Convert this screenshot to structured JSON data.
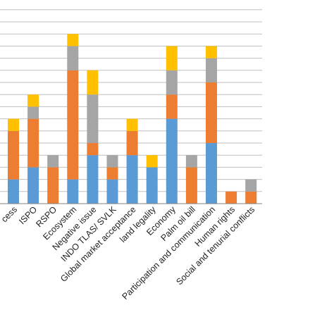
{
  "chart_data": {
    "type": "bar",
    "stacked": true,
    "categories": [
      "Access",
      "ISPO",
      "RSPO",
      "Ecosystem",
      "Negative issue",
      "INDO TLAS/ SVLK",
      "Global market acceptance",
      "land legality",
      "Economy",
      "Palm oil bill",
      "Participation and communication",
      "Human rights",
      "Social and tenurial conflicts"
    ],
    "visible_labels": [
      "cess",
      "ISPO",
      "RSPO",
      "Ecosystem",
      "Negative issue",
      "INDO TLAS/ SVLK",
      "Global market acceptance",
      "land legality",
      "Economy",
      "Palm oil bill",
      "Participation and communication",
      "Human rights",
      "Social and tenurial conflicts"
    ],
    "series": [
      {
        "color": "#5b9bd5",
        "values": [
          2,
          3,
          0,
          2,
          4,
          2,
          4,
          3,
          7,
          0,
          5,
          0,
          0
        ]
      },
      {
        "color": "#ed7d31",
        "values": [
          4,
          4,
          3,
          9,
          1,
          1,
          2,
          0,
          2,
          3,
          5,
          1,
          1
        ]
      },
      {
        "color": "#a5a5a5",
        "values": [
          0,
          1,
          1,
          2,
          4,
          1,
          0,
          0,
          2,
          1,
          2,
          0,
          1
        ]
      },
      {
        "color": "#ffc000",
        "values": [
          1,
          1,
          0,
          1,
          2,
          0,
          1,
          1,
          2,
          0,
          1,
          0,
          0
        ]
      }
    ],
    "ylim": [
      0,
      17
    ],
    "grid": true,
    "title": "",
    "xlabel": "",
    "ylabel": ""
  }
}
